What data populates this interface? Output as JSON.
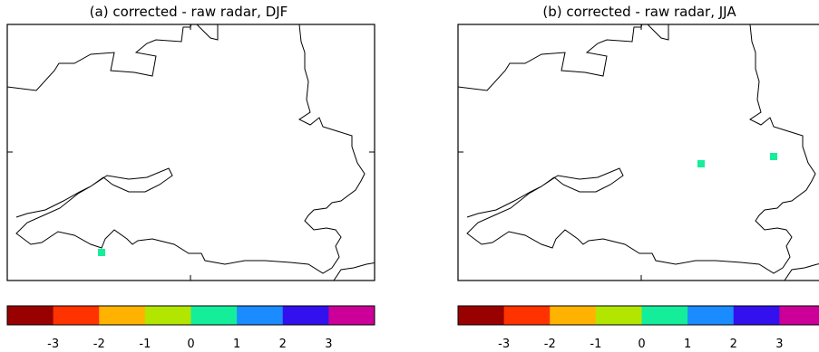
{
  "palette": [
    "#990000",
    "#ff3300",
    "#ffb300",
    "#b2e600",
    "#14ee9a",
    "#1a8cff",
    "#3311ee",
    "#cc0099"
  ],
  "panels": [
    {
      "title": "(a) corrected - raw radar, DJF",
      "colorbar_ticks": [
        "-3",
        "-2",
        "-1",
        "0",
        "1",
        "2",
        "3"
      ],
      "highlighted_cells": [
        {
          "value": 1,
          "color": "#14ee9a"
        }
      ]
    },
    {
      "title": "(b) corrected - raw radar, JJA",
      "colorbar_ticks": [
        "-3",
        "-2",
        "-1",
        "0",
        "1",
        "2",
        "3"
      ],
      "highlighted_cells": [
        {
          "value": 1,
          "color": "#14ee9a"
        },
        {
          "value": 1,
          "color": "#14ee9a"
        }
      ]
    }
  ]
}
